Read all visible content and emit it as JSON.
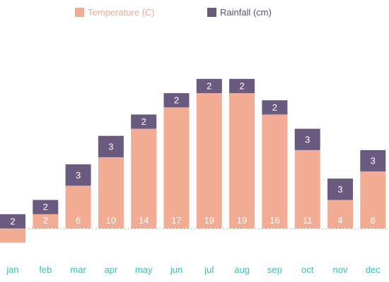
{
  "chart_data": {
    "type": "bar",
    "stacked": true,
    "categories": [
      "jan",
      "feb",
      "mar",
      "apr",
      "may",
      "jun",
      "jul",
      "aug",
      "sep",
      "oct",
      "nov",
      "dec"
    ],
    "series": [
      {
        "name": "Temperature (C)",
        "color": "#f2ac93",
        "values": [
          -2,
          2,
          6,
          10,
          14,
          17,
          19,
          19,
          16,
          11,
          4,
          8
        ]
      },
      {
        "name": "Rainfall (cm)",
        "color": "#6b5a80",
        "values": [
          2,
          2,
          3,
          3,
          2,
          2,
          2,
          2,
          2,
          3,
          3,
          3
        ]
      }
    ],
    "ylim": [
      -2,
      21
    ],
    "grid": false,
    "legend": "top",
    "data_labels": true,
    "colors": {
      "category_label": "#3dbdb8",
      "zero_line": "#bbbbbb",
      "label_text": "#ffffff"
    }
  }
}
